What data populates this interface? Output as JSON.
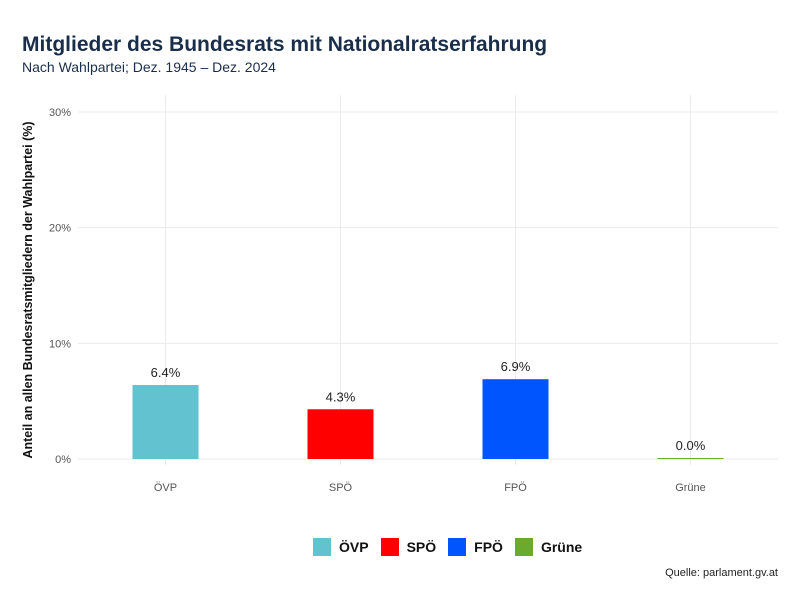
{
  "chart_data": {
    "type": "bar",
    "title": "Mitglieder des Bundesrats mit Nationalratserfahrung",
    "subtitle": "Nach Wahlpartei; Dez. 1945 – Dez. 2024",
    "xlabel": "",
    "ylabel": "Anteil an allen Bundesratsmitgliedern der Wahlpartei (%)",
    "categories": [
      "ÖVP",
      "SPÖ",
      "FPÖ",
      "Grüne"
    ],
    "values": [
      6.4,
      4.3,
      6.9,
      0.0
    ],
    "data_labels": [
      "6.4%",
      "4.3%",
      "6.9%",
      "0.0%"
    ],
    "colors": [
      "#62c2cf",
      "#ff0000",
      "#0055ff",
      "#6aaa2e"
    ],
    "ylim": [
      0,
      30
    ],
    "yticks": [
      0,
      10,
      20,
      30
    ],
    "ytick_labels": [
      "0%",
      "10%",
      "20%",
      "30%"
    ],
    "grid": true,
    "legend": {
      "placement": "bottom",
      "entries": [
        "ÖVP",
        "SPÖ",
        "FPÖ",
        "Grüne"
      ]
    },
    "source": "Quelle: parlament.gv.at"
  }
}
